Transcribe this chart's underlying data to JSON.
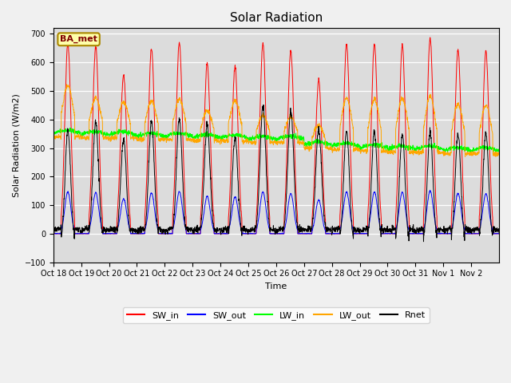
{
  "title": "Solar Radiation",
  "ylabel": "Solar Radiation (W/m2)",
  "xlabel": "Time",
  "annotation": "BA_met",
  "ylim": [
    -100,
    720
  ],
  "yticks": [
    -100,
    0,
    100,
    200,
    300,
    400,
    500,
    600,
    700
  ],
  "x_tick_labels": [
    "Oct 18",
    "Oct 19",
    "Oct 20",
    "Oct 21",
    "Oct 22",
    "Oct 23",
    "Oct 24",
    "Oct 25",
    "Oct 26",
    "Oct 27",
    "Oct 28",
    "Oct 29",
    "Oct 30",
    "Oct 31",
    "Nov 1",
    "Nov 2"
  ],
  "colors": {
    "SW_in": "#ff0000",
    "SW_out": "#0000ff",
    "LW_in": "#00ff00",
    "LW_out": "#ffa500",
    "Rnet": "#000000"
  },
  "background_color": "#dcdcdc",
  "fig_background": "#f0f0f0",
  "title_fontsize": 11,
  "n_days": 16,
  "pts_per_day": 144,
  "seed": 42,
  "sw_peaks": [
    665,
    655,
    555,
    650,
    670,
    595,
    585,
    665,
    640,
    540,
    665,
    665,
    660,
    685,
    645,
    640
  ],
  "lw_out_peaks": [
    520,
    475,
    460,
    465,
    470,
    430,
    465,
    415,
    410,
    380,
    475,
    470,
    475,
    480,
    455,
    450
  ],
  "lw_in_base": [
    350,
    345,
    345,
    340,
    340,
    335,
    335,
    330,
    330,
    310,
    305,
    300,
    295,
    295,
    290,
    290
  ],
  "rnet_night": [
    -50,
    -55,
    -60,
    -55,
    -55,
    -50,
    -60,
    -55,
    -55,
    -60,
    -65,
    -70,
    -75,
    -65,
    -60,
    -55
  ]
}
